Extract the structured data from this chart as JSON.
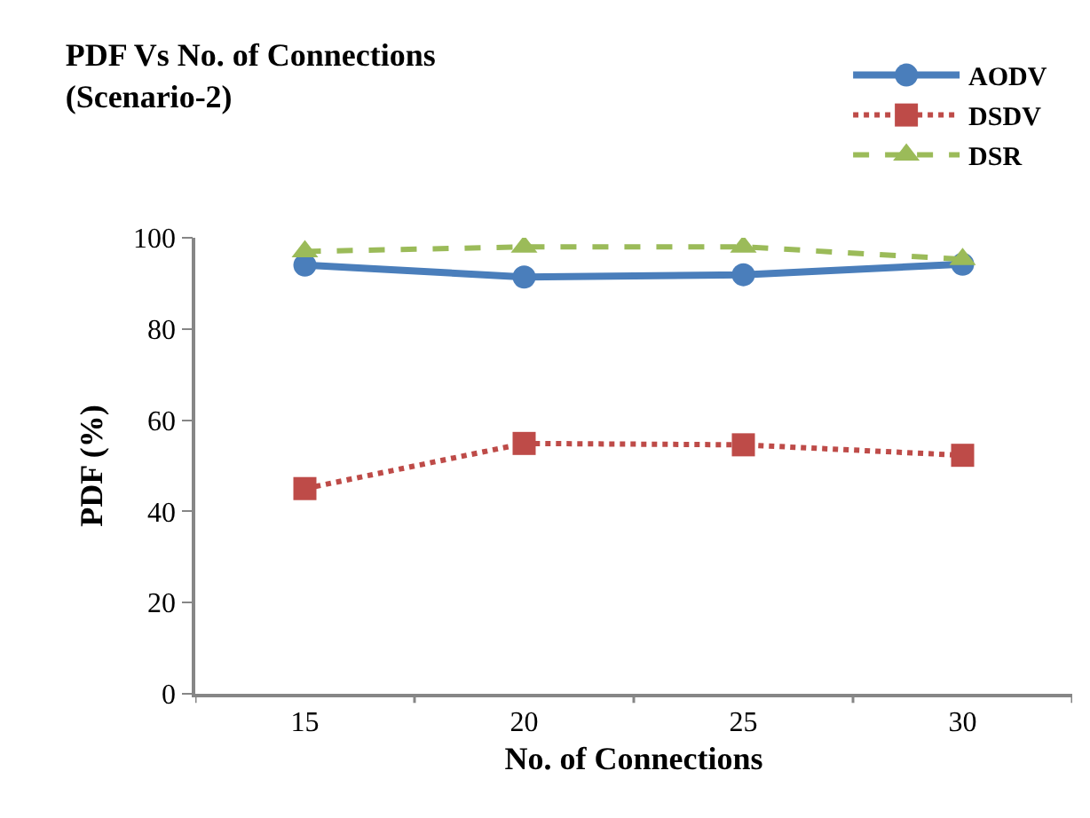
{
  "chart_data": {
    "type": "line",
    "title": "PDF Vs No. of Connections\n(Scenario-2)",
    "xlabel": "No. of Connections",
    "ylabel": "PDF (%)",
    "categories": [
      "15",
      "20",
      "25",
      "30"
    ],
    "series": [
      {
        "name": "AODV",
        "color": "#4a7ebb",
        "values": [
          94.0,
          91.4,
          91.9,
          94.2
        ],
        "marker": "circle",
        "line_style": "solid"
      },
      {
        "name": "DSDV",
        "color": "#be4b48",
        "values": [
          45.0,
          54.9,
          54.6,
          52.3
        ],
        "marker": "square",
        "line_style": "dotted"
      },
      {
        "name": "DSR",
        "color": "#9bbb59",
        "values": [
          97.0,
          98.0,
          98.0,
          95.3
        ],
        "marker": "triangle",
        "line_style": "dashed"
      }
    ],
    "ylim": [
      0,
      100
    ],
    "yticks": [
      0,
      20,
      40,
      60,
      80,
      100
    ],
    "legend": "top right"
  }
}
